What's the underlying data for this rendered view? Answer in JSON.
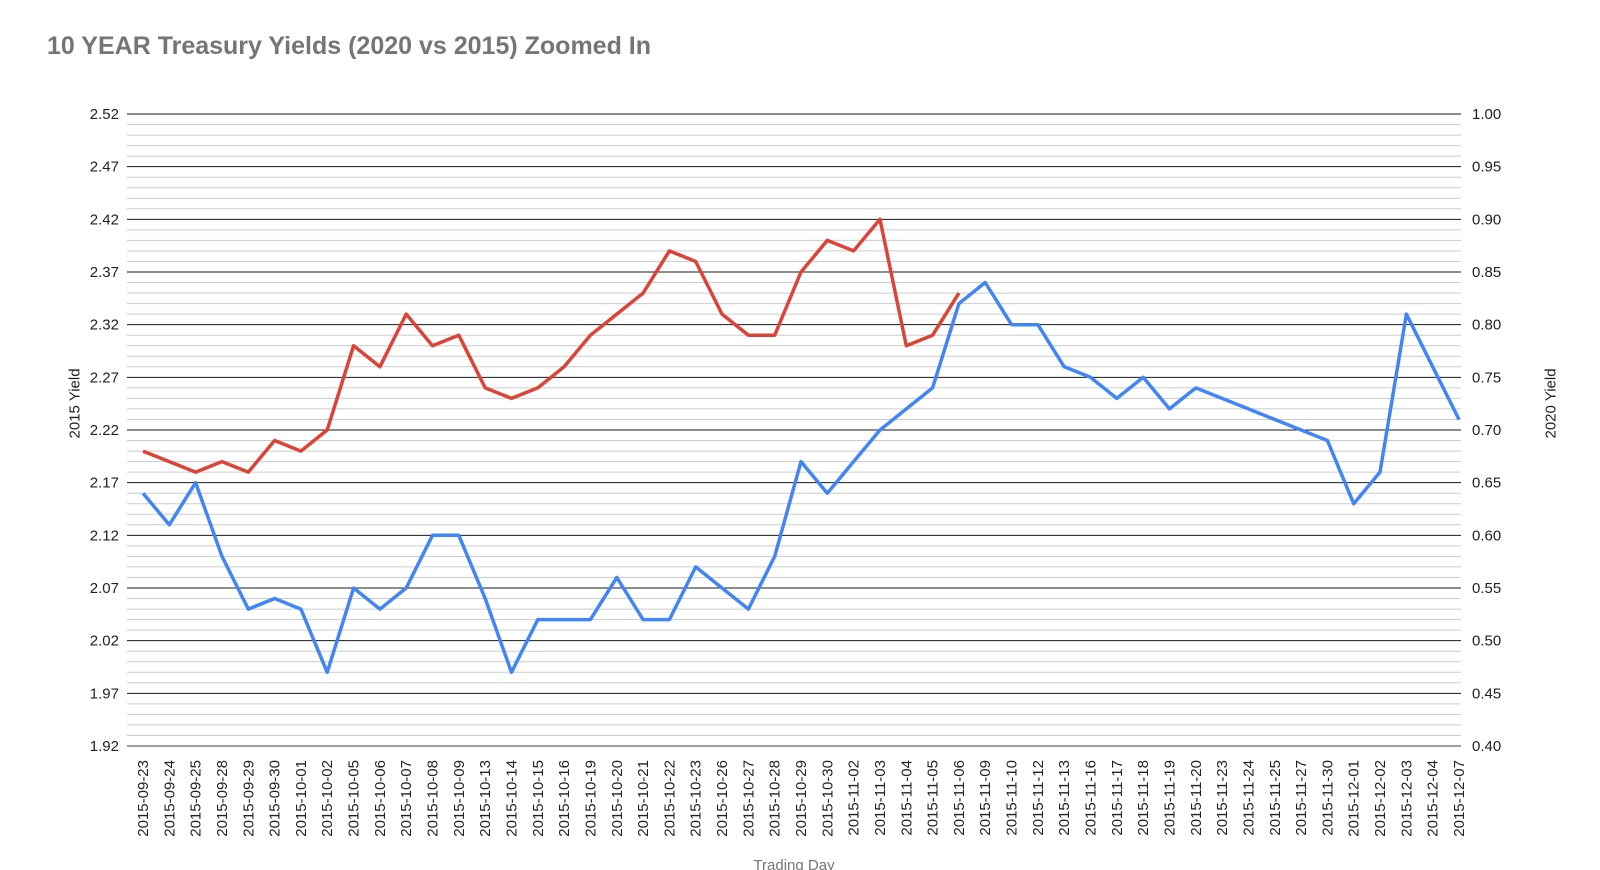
{
  "title": "10 YEAR Treasury Yields (2020 vs 2015) Zoomed In",
  "chart_data": {
    "type": "line",
    "title": "10 YEAR Treasury Yields (2020 vs 2015) Zoomed In",
    "xlabel": "Trading Day",
    "legend_position": "none",
    "grid": "on",
    "left_axis": {
      "title": "2015 Yield",
      "min": 1.92,
      "max": 2.52,
      "major_step": 0.05,
      "minor_step": 0.01,
      "tick_labels": [
        "2.52",
        "2.47",
        "2.42",
        "2.37",
        "2.32",
        "2.27",
        "2.22",
        "2.17",
        "2.12",
        "2.07",
        "2.02",
        "1.97",
        "1.92"
      ]
    },
    "right_axis": {
      "title": "2020 Yield",
      "min": 0.4,
      "max": 1.0,
      "major_step": 0.05,
      "minor_step": 0.01,
      "tick_labels": [
        "1.00",
        "0.95",
        "0.90",
        "0.85",
        "0.80",
        "0.75",
        "0.70",
        "0.65",
        "0.60",
        "0.55",
        "0.50",
        "0.45",
        "0.40"
      ]
    },
    "categories": [
      "2015-09-23",
      "2015-09-24",
      "2015-09-25",
      "2015-09-28",
      "2015-09-29",
      "2015-09-30",
      "2015-10-01",
      "2015-10-02",
      "2015-10-05",
      "2015-10-06",
      "2015-10-07",
      "2015-10-08",
      "2015-10-09",
      "2015-10-13",
      "2015-10-14",
      "2015-10-15",
      "2015-10-16",
      "2015-10-19",
      "2015-10-20",
      "2015-10-21",
      "2015-10-22",
      "2015-10-23",
      "2015-10-26",
      "2015-10-27",
      "2015-10-28",
      "2015-10-29",
      "2015-10-30",
      "2015-11-02",
      "2015-11-03",
      "2015-11-04",
      "2015-11-05",
      "2015-11-06",
      "2015-11-09",
      "2015-11-10",
      "2015-11-12",
      "2015-11-13",
      "2015-11-16",
      "2015-11-17",
      "2015-11-18",
      "2015-11-19",
      "2015-11-20",
      "2015-11-23",
      "2015-11-24",
      "2015-11-25",
      "2015-11-27",
      "2015-11-30",
      "2015-12-01",
      "2015-12-02",
      "2015-12-03",
      "2015-12-04",
      "2015-12-07"
    ],
    "series": [
      {
        "name": "2015 Yield",
        "axis": "left",
        "color": "#4285F4",
        "values": [
          2.16,
          2.13,
          2.17,
          2.1,
          2.05,
          2.06,
          2.05,
          1.99,
          2.07,
          2.05,
          2.07,
          2.12,
          2.12,
          2.06,
          1.99,
          2.04,
          2.04,
          2.04,
          2.08,
          2.04,
          2.04,
          2.09,
          2.07,
          2.05,
          2.1,
          2.19,
          2.16,
          2.19,
          2.22,
          2.24,
          2.26,
          2.34,
          2.36,
          2.32,
          2.32,
          2.28,
          2.27,
          2.25,
          2.27,
          2.24,
          2.26,
          2.25,
          2.24,
          2.23,
          2.22,
          2.21,
          2.15,
          2.18,
          2.33,
          2.28,
          2.23
        ]
      },
      {
        "name": "2020 Yield",
        "axis": "right",
        "color": "#DB4437",
        "values": [
          0.68,
          0.67,
          0.66,
          0.67,
          0.66,
          0.69,
          0.68,
          0.7,
          0.78,
          0.76,
          0.81,
          0.78,
          0.79,
          0.74,
          0.73,
          0.74,
          0.76,
          0.79,
          0.81,
          0.83,
          0.87,
          0.86,
          0.81,
          0.79,
          0.79,
          0.85,
          0.88,
          0.87,
          0.9,
          0.78,
          0.79,
          0.83,
          null,
          null,
          null,
          null,
          null,
          null,
          null,
          null,
          null,
          null,
          null,
          null,
          null,
          null,
          null,
          null,
          null,
          null,
          null
        ]
      }
    ]
  },
  "colors": {
    "series_2015": "#4285F4",
    "series_2020": "#DB4437",
    "major_gridline": "#1a1a1a",
    "minor_gridline": "#cccccc",
    "bottom_gridline": "#9e9e9e",
    "title_text": "#757575",
    "tick_text": "#222222"
  }
}
